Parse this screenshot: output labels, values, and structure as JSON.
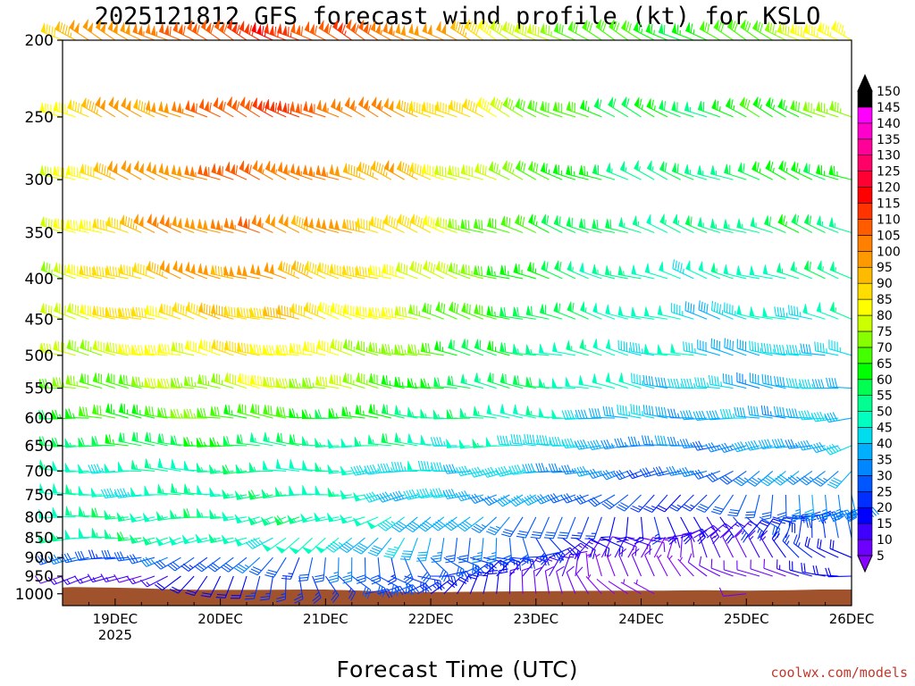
{
  "chart_data": {
    "type": "wind-barb profile",
    "title": "2025121812 GFS forecast wind profile (kt) for KSLO",
    "xlabel": "Forecast Time (UTC)",
    "credit": "coolwx.com/models",
    "x_ticks": [
      {
        "label": "19DEC",
        "sub": "2025",
        "day": 1
      },
      {
        "label": "20DEC",
        "sub": "",
        "day": 2
      },
      {
        "label": "21DEC",
        "sub": "",
        "day": 3
      },
      {
        "label": "22DEC",
        "sub": "",
        "day": 4
      },
      {
        "label": "23DEC",
        "sub": "",
        "day": 5
      },
      {
        "label": "24DEC",
        "sub": "",
        "day": 6
      },
      {
        "label": "25DEC",
        "sub": "",
        "day": 7
      },
      {
        "label": "26DEC",
        "sub": "",
        "day": 8
      }
    ],
    "xlim_days": [
      0.5,
      8.0
    ],
    "pressure_levels": [
      1000,
      950,
      900,
      850,
      800,
      750,
      700,
      650,
      600,
      550,
      500,
      450,
      400,
      350,
      300,
      250,
      200
    ],
    "y_ticks": [
      "200",
      "250",
      "300",
      "350",
      "400",
      "450",
      "500",
      "550",
      "600",
      "650",
      "700",
      "750",
      "800",
      "850",
      "900",
      "950",
      "1000"
    ],
    "ylim_hpa": [
      1035,
      200
    ],
    "time_step_hours": 3,
    "colorbar": {
      "levels": [
        "5",
        "10",
        "15",
        "20",
        "25",
        "30",
        "35",
        "40",
        "45",
        "50",
        "55",
        "60",
        "65",
        "70",
        "75",
        "80",
        "85",
        "90",
        "95",
        "100",
        "105",
        "110",
        "115",
        "120",
        "125",
        "130",
        "135",
        "140",
        "145",
        "150"
      ],
      "colors": [
        "#8800ff",
        "#6e00ff",
        "#3f00ff",
        "#0000ff",
        "#002fff",
        "#0057ff",
        "#0086ff",
        "#00b0ff",
        "#00ddee",
        "#00ffc0",
        "#00ff90",
        "#00ff50",
        "#00ff00",
        "#44ff00",
        "#88ff00",
        "#ccff00",
        "#ffff00",
        "#ffdd00",
        "#ffbb00",
        "#ff9900",
        "#ff7f00",
        "#ff5c00",
        "#ff3300",
        "#ff0000",
        "#ff0033",
        "#ff0066",
        "#ff0099",
        "#ff00cc",
        "#ff00ff",
        "#000000"
      ]
    },
    "terrain": {
      "color": "#a0522d",
      "surface_pressure_hpa": [
        [
          0.5,
          983
        ],
        [
          0.6,
          982
        ],
        [
          0.9,
          983
        ],
        [
          1.2,
          985
        ],
        [
          1.5,
          988
        ],
        [
          1.8,
          990
        ],
        [
          2.0,
          990
        ],
        [
          2.4,
          990
        ],
        [
          2.8,
          989
        ],
        [
          3.0,
          989
        ],
        [
          3.4,
          993
        ],
        [
          3.8,
          996
        ],
        [
          4.2,
          996
        ],
        [
          4.6,
          995
        ],
        [
          5.0,
          994
        ],
        [
          5.4,
          993
        ],
        [
          5.8,
          992
        ],
        [
          6.2,
          992
        ],
        [
          6.6,
          991
        ],
        [
          7.0,
          992
        ],
        [
          7.4,
          991
        ],
        [
          7.7,
          989
        ],
        [
          8.0,
          989
        ]
      ]
    },
    "wind_speed_kt": [
      [
        15,
        12,
        30,
        55,
        55,
        50,
        50,
        60,
        65,
        70,
        75,
        80,
        80,
        80,
        80,
        85,
        90
      ],
      [
        15,
        15,
        30,
        55,
        55,
        50,
        50,
        60,
        65,
        70,
        80,
        85,
        90,
        90,
        95,
        95,
        100
      ],
      [
        15,
        15,
        30,
        55,
        55,
        50,
        50,
        60,
        70,
        75,
        85,
        90,
        95,
        100,
        100,
        100,
        105
      ],
      [
        18,
        20,
        30,
        50,
        55,
        55,
        55,
        65,
        70,
        75,
        85,
        90,
        100,
        105,
        105,
        105,
        110
      ],
      [
        20,
        22,
        30,
        50,
        55,
        55,
        55,
        60,
        70,
        80,
        90,
        95,
        100,
        105,
        110,
        115,
        115
      ],
      [
        22,
        25,
        30,
        50,
        55,
        55,
        50,
        55,
        65,
        80,
        85,
        90,
        95,
        100,
        105,
        110,
        115
      ],
      [
        25,
        28,
        30,
        45,
        50,
        50,
        50,
        55,
        65,
        75,
        80,
        85,
        90,
        95,
        100,
        105,
        110
      ],
      [
        25,
        28,
        30,
        40,
        45,
        45,
        45,
        55,
        60,
        70,
        75,
        80,
        85,
        90,
        95,
        100,
        105
      ],
      [
        20,
        25,
        28,
        35,
        40,
        40,
        45,
        50,
        55,
        60,
        65,
        70,
        75,
        80,
        85,
        90,
        95
      ],
      [
        15,
        20,
        25,
        30,
        35,
        40,
        45,
        50,
        55,
        60,
        60,
        65,
        70,
        70,
        75,
        80,
        85
      ],
      [
        10,
        12,
        20,
        25,
        30,
        35,
        40,
        45,
        50,
        55,
        55,
        60,
        60,
        65,
        70,
        70,
        75
      ],
      [
        5,
        8,
        10,
        15,
        25,
        30,
        35,
        40,
        45,
        50,
        50,
        55,
        55,
        60,
        60,
        65,
        70
      ],
      [
        5,
        8,
        10,
        15,
        20,
        25,
        30,
        35,
        40,
        45,
        50,
        50,
        50,
        55,
        55,
        60,
        65
      ],
      [
        5,
        8,
        10,
        15,
        20,
        25,
        30,
        35,
        40,
        45,
        45,
        45,
        50,
        55,
        55,
        60,
        65
      ],
      [
        8,
        10,
        15,
        20,
        25,
        30,
        35,
        35,
        40,
        40,
        40,
        45,
        50,
        55,
        60,
        65,
        70
      ],
      [
        10,
        15,
        20,
        25,
        30,
        35,
        35,
        40,
        40,
        40,
        45,
        50,
        55,
        60,
        65,
        70,
        80
      ],
      [
        15,
        20,
        25,
        30,
        35,
        35,
        40,
        40,
        40,
        45,
        45,
        50,
        55,
        60,
        65,
        75,
        85
      ]
    ],
    "wind_dir_deg": [
      [
        250,
        255,
        260,
        262,
        265,
        268,
        270,
        272,
        275,
        278,
        280,
        282,
        285,
        288,
        290,
        292,
        295
      ],
      [
        255,
        258,
        262,
        265,
        268,
        270,
        272,
        275,
        278,
        280,
        282,
        285,
        288,
        290,
        292,
        295,
        298
      ],
      [
        230,
        240,
        250,
        260,
        265,
        270,
        272,
        275,
        278,
        280,
        282,
        285,
        288,
        290,
        292,
        295,
        298
      ],
      [
        200,
        220,
        240,
        255,
        262,
        268,
        272,
        275,
        278,
        280,
        282,
        285,
        288,
        290,
        292,
        295,
        298
      ],
      [
        160,
        190,
        220,
        245,
        258,
        266,
        270,
        274,
        277,
        280,
        282,
        285,
        288,
        290,
        292,
        295,
        298
      ],
      [
        120,
        160,
        200,
        235,
        255,
        265,
        270,
        274,
        277,
        280,
        282,
        285,
        288,
        290,
        292,
        295,
        298
      ],
      [
        90,
        130,
        180,
        225,
        250,
        262,
        268,
        272,
        276,
        280,
        283,
        286,
        288,
        290,
        292,
        295,
        298
      ],
      [
        60,
        100,
        150,
        210,
        240,
        258,
        266,
        272,
        276,
        280,
        283,
        286,
        288,
        290,
        292,
        295,
        298
      ],
      [
        30,
        70,
        120,
        190,
        230,
        255,
        265,
        272,
        276,
        280,
        283,
        286,
        288,
        290,
        292,
        295,
        298
      ],
      [
        10,
        40,
        90,
        170,
        220,
        250,
        262,
        270,
        276,
        280,
        283,
        286,
        288,
        290,
        292,
        295,
        298
      ],
      [
        340,
        20,
        60,
        140,
        210,
        245,
        260,
        268,
        275,
        280,
        283,
        286,
        288,
        290,
        292,
        295,
        298
      ],
      [
        320,
        350,
        30,
        110,
        190,
        240,
        258,
        268,
        275,
        280,
        283,
        286,
        288,
        290,
        292,
        295,
        298
      ],
      [
        300,
        330,
        20,
        90,
        170,
        230,
        255,
        266,
        274,
        280,
        283,
        286,
        288,
        290,
        292,
        295,
        298
      ],
      [
        280,
        310,
        350,
        60,
        150,
        220,
        250,
        264,
        273,
        279,
        283,
        286,
        288,
        290,
        292,
        295,
        298
      ],
      [
        270,
        290,
        330,
        30,
        120,
        200,
        240,
        260,
        272,
        278,
        282,
        285,
        288,
        290,
        292,
        295,
        298
      ],
      [
        265,
        280,
        310,
        10,
        90,
        180,
        230,
        256,
        270,
        278,
        282,
        285,
        288,
        290,
        292,
        295,
        298
      ],
      [
        262,
        275,
        300,
        350,
        60,
        160,
        220,
        252,
        268,
        277,
        282,
        285,
        288,
        290,
        292,
        295,
        298
      ]
    ]
  }
}
